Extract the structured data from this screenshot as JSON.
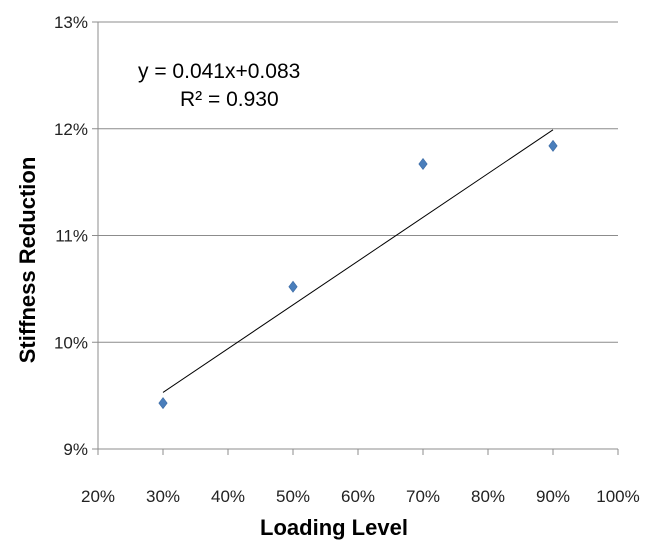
{
  "chart_data": {
    "type": "scatter",
    "title": "",
    "xlabel": "Loading Level",
    "ylabel": "Stiffness Reduction",
    "xlim": [
      0.2,
      1.0
    ],
    "ylim": [
      0.09,
      0.13
    ],
    "x_ticks": [
      "20%",
      "30%",
      "40%",
      "50%",
      "60%",
      "70%",
      "80%",
      "90%",
      "100%"
    ],
    "y_ticks": [
      "9%",
      "10%",
      "11%",
      "12%",
      "13%"
    ],
    "grid": "horizontal",
    "legend": "none",
    "series": [
      {
        "marker": "diamond",
        "color": "#4a7ebb",
        "x": [
          0.3,
          0.5,
          0.7,
          0.9
        ],
        "y": [
          0.0943,
          0.1052,
          0.1167,
          0.1184
        ]
      }
    ],
    "trendline": {
      "type": "linear",
      "slope": 0.041,
      "intercept": 0.083,
      "x_range": [
        0.3,
        0.9
      ],
      "color": "#000000"
    },
    "annotations": {
      "equation": "y = 0.041x+0.083",
      "r_squared": "R² = 0.930"
    }
  }
}
